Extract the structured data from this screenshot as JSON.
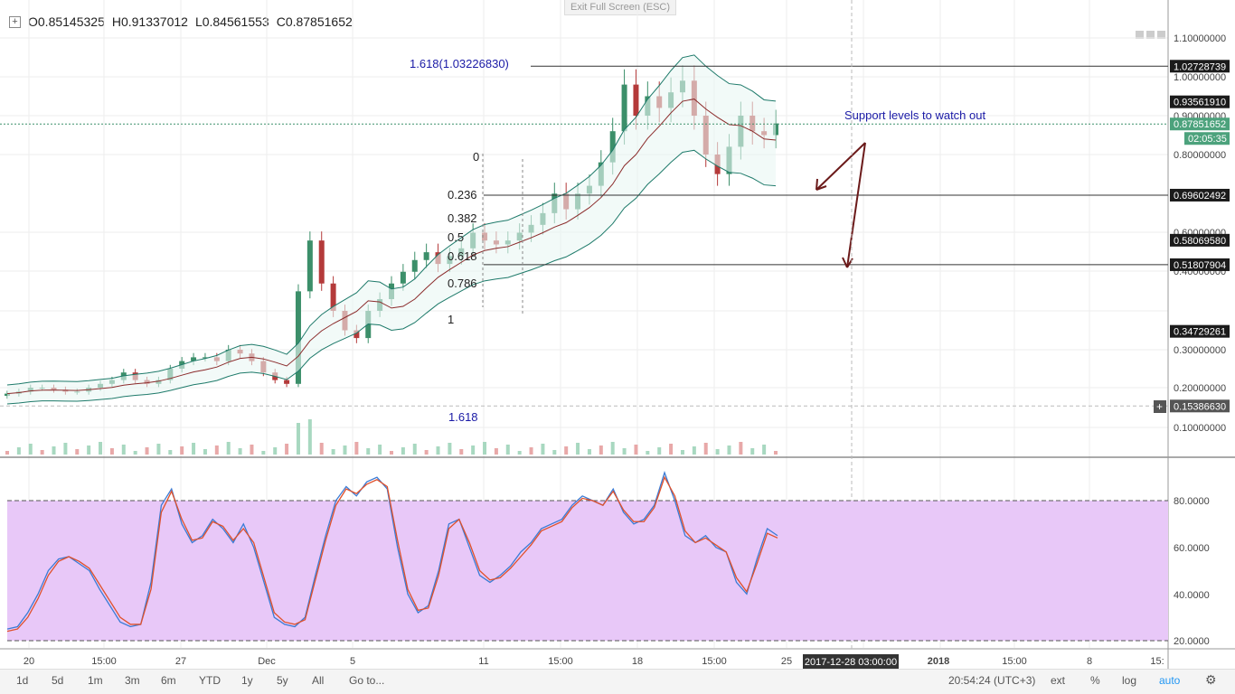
{
  "ohlc": {
    "open": "O0.85145325",
    "high": "H0.91337012",
    "low": "L0.84561553",
    "close": "C0.87851652"
  },
  "exit_fullscreen": "Exit Full Screen (ESC)",
  "chart_data": [
    {
      "type": "candlestick",
      "title": "",
      "y_axis_labels": [
        "1.10000000",
        "1.00000000",
        "0.90000000",
        "0.80000000",
        "0.60000000",
        "0.40000000",
        "0.30000000",
        "0.20000000",
        "0.10000000"
      ],
      "x_axis_labels": [
        "20",
        "15:00",
        "27",
        "Dec",
        "5",
        "11",
        "15:00",
        "18",
        "15:00",
        "25",
        "2018",
        "15:00",
        "8",
        "15:"
      ],
      "crosshair_time": "2017-12-28 03:00:00",
      "price_tags": [
        {
          "value": 1.02728739,
          "label": "1.02728739",
          "style": "dark"
        },
        {
          "value": 0.9356191,
          "label": "0.93561910",
          "style": "dark"
        },
        {
          "value": 0.87851652,
          "label": "0.87851652",
          "style": "green"
        },
        {
          "value": 0.69602492,
          "label": "0.69602492",
          "style": "dark"
        },
        {
          "value": 0.5806958,
          "label": "0.58069580",
          "style": "dark"
        },
        {
          "value": 0.51807904,
          "label": "0.51807904",
          "style": "dark"
        },
        {
          "value": 0.34729261,
          "label": "0.34729261",
          "style": "dark"
        },
        {
          "value": 0.1538663,
          "label": "0.15386630",
          "style": "grey"
        }
      ],
      "countdown": "02:05:35",
      "fib_levels": [
        {
          "label": "0"
        },
        {
          "label": "0.236"
        },
        {
          "label": "0.382"
        },
        {
          "label": "0.5"
        },
        {
          "label": "0.618"
        },
        {
          "label": "0.786"
        },
        {
          "label": "1"
        },
        {
          "label": "1.618"
        }
      ],
      "extension_label": "1.618(1.03226830)",
      "annotation": "Support levels to watch out",
      "close_series": [
        0.185,
        0.19,
        0.2,
        0.2,
        0.195,
        0.19,
        0.19,
        0.2,
        0.21,
        0.22,
        0.24,
        0.22,
        0.21,
        0.22,
        0.25,
        0.27,
        0.28,
        0.28,
        0.27,
        0.3,
        0.29,
        0.27,
        0.24,
        0.22,
        0.21,
        0.45,
        0.58,
        0.47,
        0.4,
        0.35,
        0.33,
        0.4,
        0.43,
        0.47,
        0.5,
        0.53,
        0.55,
        0.52,
        0.54,
        0.56,
        0.6,
        0.58,
        0.57,
        0.58,
        0.6,
        0.62,
        0.65,
        0.7,
        0.66,
        0.7,
        0.72,
        0.78,
        0.86,
        0.98,
        0.9,
        0.95,
        0.92,
        0.96,
        0.99,
        0.9,
        0.8,
        0.75,
        0.82,
        0.9,
        0.86,
        0.85,
        0.88
      ],
      "colors": {
        "up": "#3c8f6a",
        "down": "#b43a3a",
        "band_fill": "#eaf6f3",
        "band_line": "#1e7a6a",
        "ma": "#8b2b2b",
        "fib": "#333333",
        "ext": "#1a1aa6"
      }
    },
    {
      "type": "line",
      "title": "",
      "y_axis_labels": [
        "80.0000",
        "60.0000",
        "40.0000",
        "20.0000"
      ],
      "series": [
        {
          "values": [
            25,
            26,
            32,
            40,
            50,
            55,
            56,
            53,
            50,
            42,
            35,
            28,
            26,
            27,
            45,
            78,
            85,
            70,
            62,
            65,
            72,
            68,
            62,
            70,
            60,
            45,
            30,
            27,
            26,
            30,
            48,
            65,
            80,
            86,
            82,
            88,
            90,
            85,
            60,
            40,
            32,
            35,
            50,
            70,
            72,
            60,
            48,
            45,
            48,
            52,
            58,
            62,
            68,
            70,
            72,
            78,
            82,
            80,
            78,
            85,
            75,
            70,
            72,
            78,
            92,
            80,
            65,
            62,
            65,
            60,
            58,
            45,
            40,
            55,
            68,
            65
          ]
        },
        {
          "values": [
            24,
            25,
            30,
            38,
            48,
            54,
            56,
            54,
            51,
            44,
            37,
            30,
            27,
            27,
            42,
            75,
            84,
            72,
            63,
            64,
            71,
            69,
            63,
            68,
            62,
            47,
            32,
            28,
            27,
            29,
            46,
            63,
            78,
            85,
            83,
            87,
            89,
            86,
            63,
            42,
            33,
            34,
            48,
            68,
            72,
            62,
            50,
            46,
            47,
            51,
            56,
            61,
            67,
            69,
            71,
            77,
            81,
            80,
            78,
            84,
            76,
            71,
            71,
            77,
            90,
            82,
            67,
            62,
            64,
            61,
            58,
            47,
            41,
            53,
            66,
            64
          ]
        }
      ],
      "colors": [
        "#3a7bd5",
        "#e0502a"
      ],
      "fill": "#e8c8f8"
    }
  ],
  "bottom_bar": {
    "ranges": [
      "1d",
      "5d",
      "1m",
      "3m",
      "6m",
      "YTD",
      "1y",
      "5y",
      "All",
      "Go to..."
    ],
    "clock": "20:54:24 (UTC+3)",
    "options": [
      "ext",
      "%",
      "log",
      "auto"
    ]
  }
}
